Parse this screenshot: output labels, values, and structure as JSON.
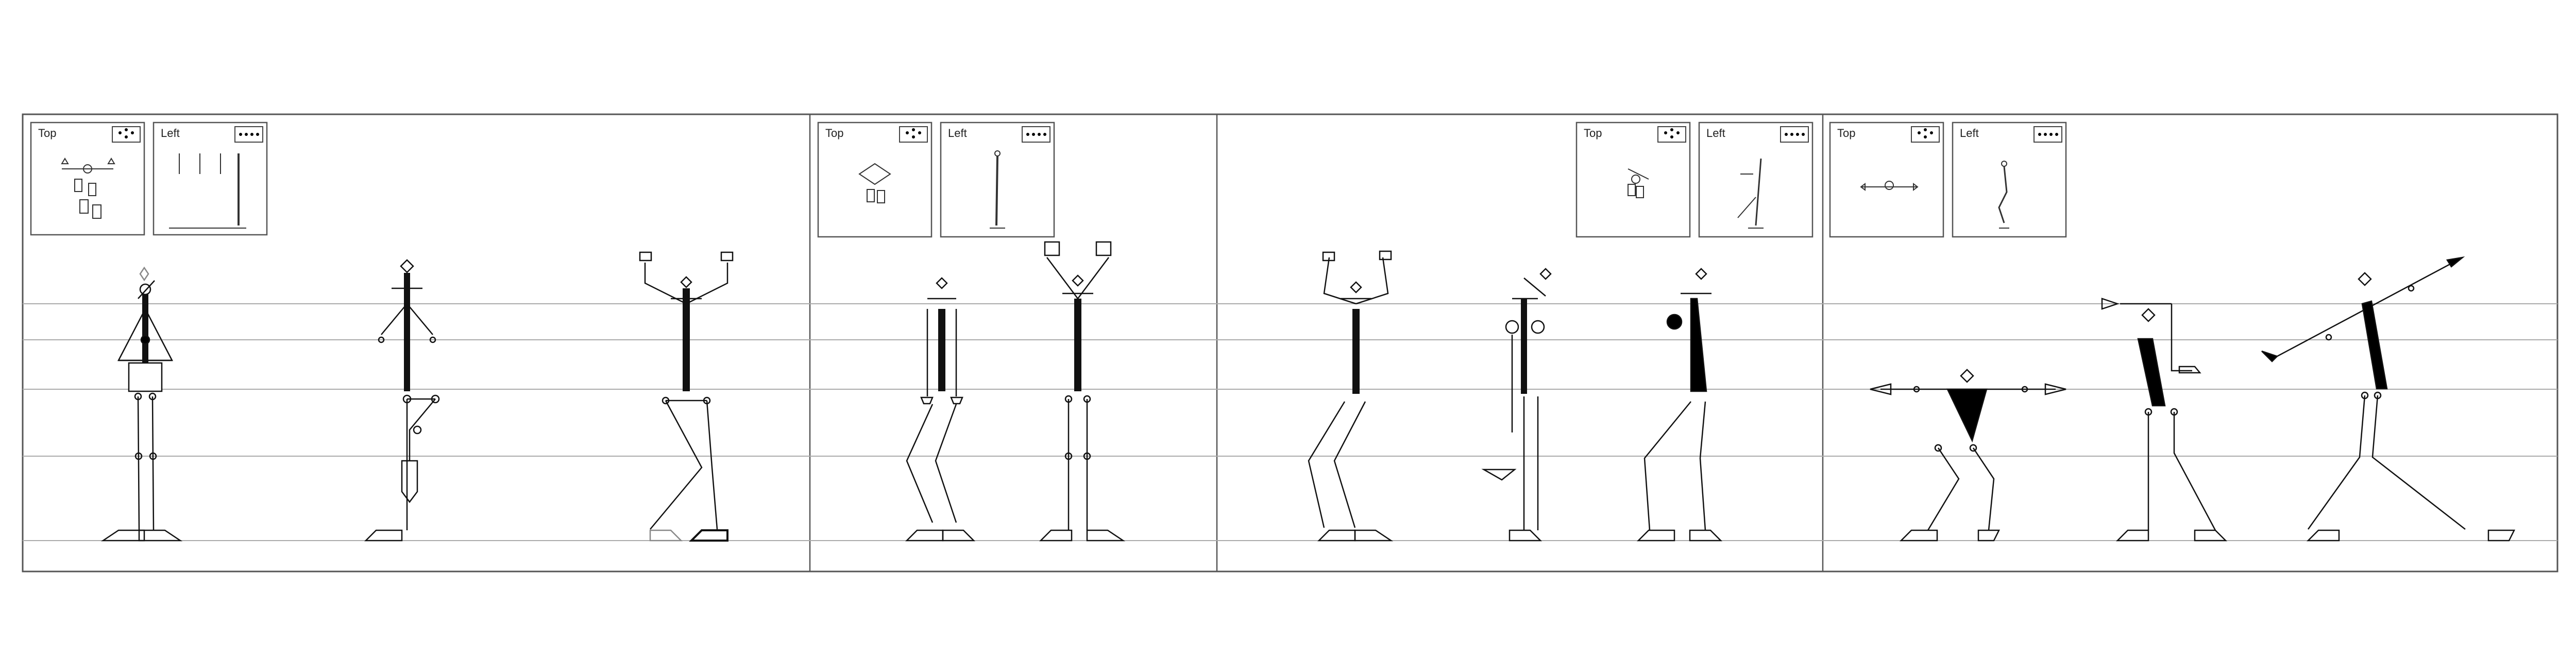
{
  "colors": {
    "stroke": "#111111",
    "grid": "#9a9a9a",
    "frame": "#555555",
    "fill_dark": "#000000"
  },
  "sections": [
    {
      "views": [
        {
          "label": "Top",
          "icon": "top-view-dots-icon"
        },
        {
          "label": "Left",
          "icon": "left-view-dots-icon"
        }
      ],
      "figures": [
        "figure-1",
        "figure-2",
        "figure-3"
      ]
    },
    {
      "views": [
        {
          "label": "Top",
          "icon": "top-view-dots-icon"
        },
        {
          "label": "Left",
          "icon": "left-view-dots-icon"
        }
      ],
      "figures": [
        "figure-4",
        "figure-5"
      ]
    },
    {
      "views": [
        {
          "label": "Top",
          "icon": "top-view-dots-icon"
        },
        {
          "label": "Left",
          "icon": "left-view-dots-icon"
        }
      ],
      "figures": [
        "figure-6",
        "figure-7",
        "figure-8"
      ]
    },
    {
      "views": [
        {
          "label": "Top",
          "icon": "top-view-dots-icon"
        },
        {
          "label": "Left",
          "icon": "left-view-dots-icon"
        }
      ],
      "figures": [
        "figure-9",
        "figure-10",
        "figure-11"
      ]
    }
  ]
}
